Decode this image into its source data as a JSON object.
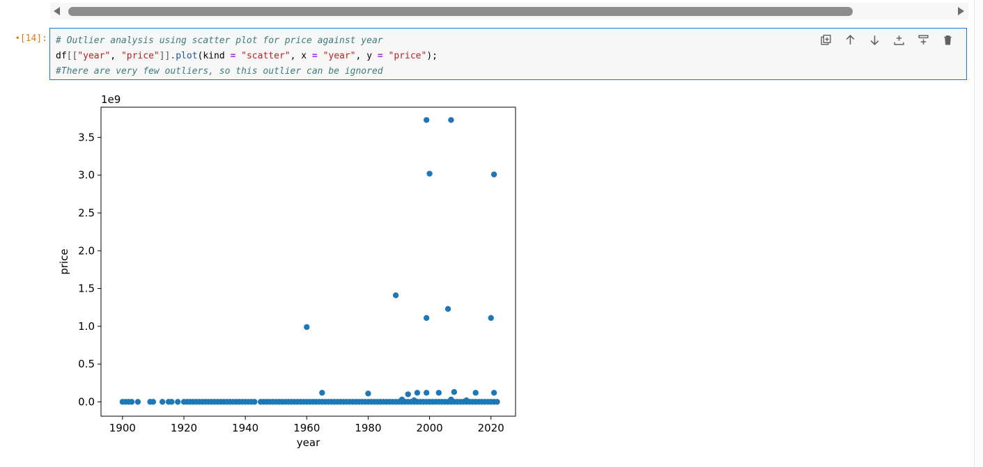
{
  "cell": {
    "prompt": "[14]:",
    "prompt_marker": "•",
    "code": {
      "line1": "# Outlier analysis using scatter plot for price against year",
      "line2": {
        "p1": "df",
        "p2": "[[",
        "p3": "\"year\"",
        "p4": ", ",
        "p5": "\"price\"",
        "p6": "]]",
        "p7": ".plot",
        "p8": "(kind ",
        "p9": "=",
        "p10": " ",
        "p11": "\"scatter\"",
        "p12": ", x ",
        "p13": "=",
        "p14": " ",
        "p15": "\"year\"",
        "p16": ", y ",
        "p17": "=",
        "p18": " ",
        "p19": "\"price\"",
        "p20": ");"
      },
      "line3": "#There are very few outliers, so this outlier can be ignored"
    },
    "toolbar": [
      "duplicate-icon",
      "move-up-icon",
      "move-down-icon",
      "insert-above-icon",
      "insert-below-icon",
      "delete-icon"
    ]
  },
  "colors": {
    "accent": "#1976d2",
    "marker": "#1f77b4",
    "prompt": "#e07b17"
  },
  "chart_data": {
    "type": "scatter",
    "xlabel": "year",
    "ylabel": "price",
    "offset_label": "1e9",
    "xlim": [
      1893,
      2028
    ],
    "ylim": [
      -0.19,
      3.9
    ],
    "xticks": [
      1900,
      1920,
      1940,
      1960,
      1980,
      2000,
      2020
    ],
    "yticks": [
      0.0,
      0.5,
      1.0,
      1.5,
      2.0,
      2.5,
      3.0,
      3.5
    ],
    "ytick_labels": [
      "0.0",
      "0.5",
      "1.0",
      "1.5",
      "2.0",
      "2.5",
      "3.0",
      "3.5"
    ],
    "outliers": [
      [
        1999,
        3.73
      ],
      [
        2007,
        3.73
      ],
      [
        2000,
        3.02
      ],
      [
        2021,
        3.01
      ],
      [
        1989,
        1.41
      ],
      [
        2006,
        1.23
      ],
      [
        1999,
        1.11
      ],
      [
        2020,
        1.11
      ],
      [
        1960,
        0.99
      ],
      [
        1965,
        0.12
      ],
      [
        1980,
        0.11
      ],
      [
        1993,
        0.1
      ],
      [
        1996,
        0.12
      ],
      [
        1999,
        0.12
      ],
      [
        2003,
        0.12
      ],
      [
        2008,
        0.13
      ],
      [
        2015,
        0.12
      ],
      [
        2021,
        0.12
      ],
      [
        1991,
        0.03
      ],
      [
        2007,
        0.03
      ],
      [
        1995,
        0.02
      ],
      [
        2012,
        0.02
      ]
    ],
    "baseline_years": [
      1900,
      1901,
      1902,
      1903,
      1905,
      1909,
      1910,
      1913,
      1915,
      1916,
      1918,
      1920,
      1921,
      1922,
      1923,
      1924,
      1925,
      1926,
      1927,
      1928,
      1929,
      1930,
      1931,
      1932,
      1933,
      1934,
      1935,
      1936,
      1937,
      1938,
      1939,
      1940,
      1941,
      1942,
      1943,
      1945,
      1946,
      1947,
      1948,
      1949,
      1950,
      1951,
      1952,
      1953,
      1954,
      1955,
      1956,
      1957,
      1958,
      1959,
      1960,
      1961,
      1962,
      1963,
      1964,
      1965,
      1966,
      1967,
      1968,
      1969,
      1970,
      1971,
      1972,
      1973,
      1974,
      1975,
      1976,
      1977,
      1978,
      1979,
      1980,
      1981,
      1982,
      1983,
      1984,
      1985,
      1986,
      1987,
      1988,
      1989,
      1990,
      1991,
      1992,
      1993,
      1994,
      1995,
      1996,
      1997,
      1998,
      1999,
      2000,
      2001,
      2002,
      2003,
      2004,
      2005,
      2006,
      2007,
      2008,
      2009,
      2010,
      2011,
      2012,
      2013,
      2014,
      2015,
      2016,
      2017,
      2018,
      2019,
      2020,
      2021,
      2022
    ],
    "baseline_value": 0.0
  }
}
